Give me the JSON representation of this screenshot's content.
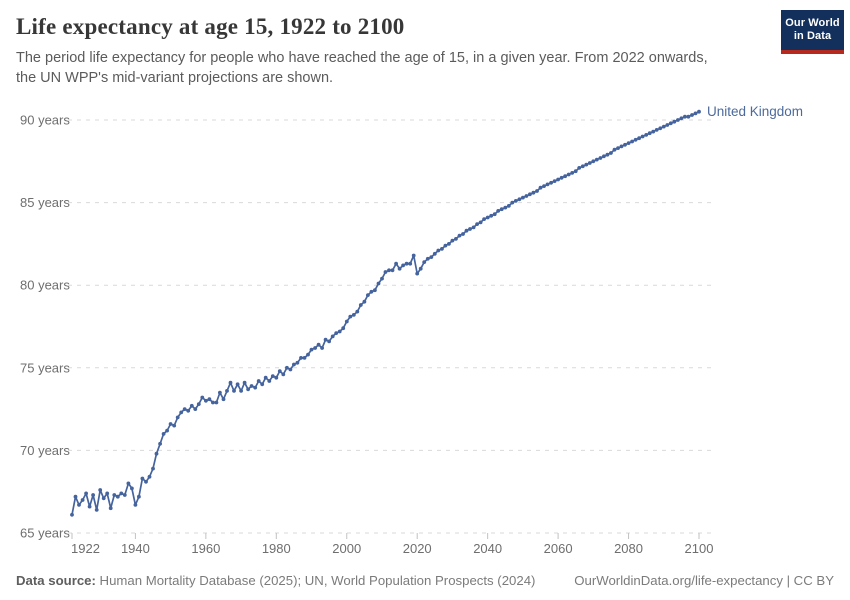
{
  "header": {
    "title": "Life expectancy at age 15, 1922 to 2100",
    "subtitle_line1": "The period life expectancy for people who have reached the age of 15, in a given year. From 2022 onwards,",
    "subtitle_line2": "the UN WPP's mid-variant projections are shown."
  },
  "logo": {
    "line1": "Our World",
    "line2": "in Data",
    "bg_color": "#12305b",
    "accent_color": "#b5291f"
  },
  "footer": {
    "data_source_label": "Data source:",
    "data_source_text": " Human Mortality Database (2025); UN, World Population Prospects (2024)",
    "attribution": "OurWorldinData.org/life-expectancy | CC BY"
  },
  "chart_data": {
    "type": "line",
    "title": "Life expectancy at age 15, 1922 to 2100",
    "entity_label": "United Kingdom",
    "xlim": [
      1922,
      2100
    ],
    "ylim": [
      65,
      90
    ],
    "x_ticks": [
      "1922",
      "1940",
      "1960",
      "1980",
      "2000",
      "2020",
      "2040",
      "2060",
      "2080",
      "2100"
    ],
    "y_ticks": [
      {
        "value": 65,
        "label": "65 years"
      },
      {
        "value": 70,
        "label": "70 years"
      },
      {
        "value": 75,
        "label": "75 years"
      },
      {
        "value": 80,
        "label": "80 years"
      },
      {
        "value": 85,
        "label": "85 years"
      },
      {
        "value": 90,
        "label": "90 years"
      }
    ],
    "grid": "horizontal-dashed",
    "legend_position": "end-of-line-label",
    "projection_start_year": 2022,
    "line_color": "#45639d",
    "label_color": "#4c6a9c",
    "axis_text_color": "#6e6e6e",
    "grid_color": "#d9d9d9",
    "series": [
      {
        "name": "United Kingdom",
        "x": [
          1922,
          1923,
          1924,
          1925,
          1926,
          1927,
          1928,
          1929,
          1930,
          1931,
          1932,
          1933,
          1934,
          1935,
          1936,
          1937,
          1938,
          1939,
          1940,
          1941,
          1942,
          1943,
          1944,
          1945,
          1946,
          1947,
          1948,
          1949,
          1950,
          1951,
          1952,
          1953,
          1954,
          1955,
          1956,
          1957,
          1958,
          1959,
          1960,
          1961,
          1962,
          1963,
          1964,
          1965,
          1966,
          1967,
          1968,
          1969,
          1970,
          1971,
          1972,
          1973,
          1974,
          1975,
          1976,
          1977,
          1978,
          1979,
          1980,
          1981,
          1982,
          1983,
          1984,
          1985,
          1986,
          1987,
          1988,
          1989,
          1990,
          1991,
          1992,
          1993,
          1994,
          1995,
          1996,
          1997,
          1998,
          1999,
          2000,
          2001,
          2002,
          2003,
          2004,
          2005,
          2006,
          2007,
          2008,
          2009,
          2010,
          2011,
          2012,
          2013,
          2014,
          2015,
          2016,
          2017,
          2018,
          2019,
          2020,
          2021,
          2022,
          2023,
          2024,
          2025,
          2026,
          2027,
          2028,
          2029,
          2030,
          2031,
          2032,
          2033,
          2034,
          2035,
          2036,
          2037,
          2038,
          2039,
          2040,
          2041,
          2042,
          2043,
          2044,
          2045,
          2046,
          2047,
          2048,
          2049,
          2050,
          2051,
          2052,
          2053,
          2054,
          2055,
          2056,
          2057,
          2058,
          2059,
          2060,
          2061,
          2062,
          2063,
          2064,
          2065,
          2066,
          2067,
          2068,
          2069,
          2070,
          2071,
          2072,
          2073,
          2074,
          2075,
          2076,
          2077,
          2078,
          2079,
          2080,
          2081,
          2082,
          2083,
          2084,
          2085,
          2086,
          2087,
          2088,
          2089,
          2090,
          2091,
          2092,
          2093,
          2094,
          2095,
          2096,
          2097,
          2098,
          2099,
          2100
        ],
        "values": [
          66.1,
          67.2,
          66.7,
          67.0,
          67.4,
          66.6,
          67.3,
          66.4,
          67.6,
          67.1,
          67.4,
          66.5,
          67.3,
          67.2,
          67.4,
          67.3,
          68.0,
          67.7,
          66.7,
          67.2,
          68.3,
          68.1,
          68.4,
          68.9,
          69.8,
          70.4,
          71.0,
          71.2,
          71.6,
          71.5,
          72.0,
          72.3,
          72.5,
          72.4,
          72.7,
          72.5,
          72.8,
          73.2,
          73.0,
          73.1,
          72.9,
          72.9,
          73.5,
          73.1,
          73.6,
          74.1,
          73.6,
          74.0,
          73.6,
          74.1,
          73.7,
          73.9,
          73.8,
          74.2,
          74.0,
          74.4,
          74.2,
          74.5,
          74.4,
          74.8,
          74.6,
          75.0,
          74.9,
          75.2,
          75.3,
          75.6,
          75.6,
          75.8,
          76.1,
          76.2,
          76.4,
          76.2,
          76.7,
          76.6,
          76.9,
          77.1,
          77.2,
          77.4,
          77.8,
          78.1,
          78.2,
          78.4,
          78.8,
          79.0,
          79.4,
          79.6,
          79.7,
          80.1,
          80.4,
          80.8,
          80.9,
          80.9,
          81.3,
          81.0,
          81.2,
          81.3,
          81.3,
          81.8,
          80.7,
          81.0,
          81.4,
          81.6,
          81.7,
          81.9,
          82.1,
          82.2,
          82.4,
          82.5,
          82.7,
          82.8,
          83.0,
          83.1,
          83.3,
          83.4,
          83.5,
          83.7,
          83.8,
          84.0,
          84.1,
          84.2,
          84.3,
          84.5,
          84.6,
          84.7,
          84.8,
          85.0,
          85.1,
          85.2,
          85.3,
          85.4,
          85.5,
          85.6,
          85.7,
          85.9,
          86.0,
          86.1,
          86.2,
          86.3,
          86.4,
          86.5,
          86.6,
          86.7,
          86.8,
          86.9,
          87.1,
          87.2,
          87.3,
          87.4,
          87.5,
          87.6,
          87.7,
          87.8,
          87.9,
          88.0,
          88.2,
          88.3,
          88.4,
          88.5,
          88.6,
          88.7,
          88.8,
          88.9,
          89.0,
          89.1,
          89.2,
          89.3,
          89.4,
          89.5,
          89.6,
          89.7,
          89.8,
          89.9,
          90.0,
          90.1,
          90.2,
          90.2,
          90.3,
          90.4,
          90.5
        ]
      }
    ]
  }
}
